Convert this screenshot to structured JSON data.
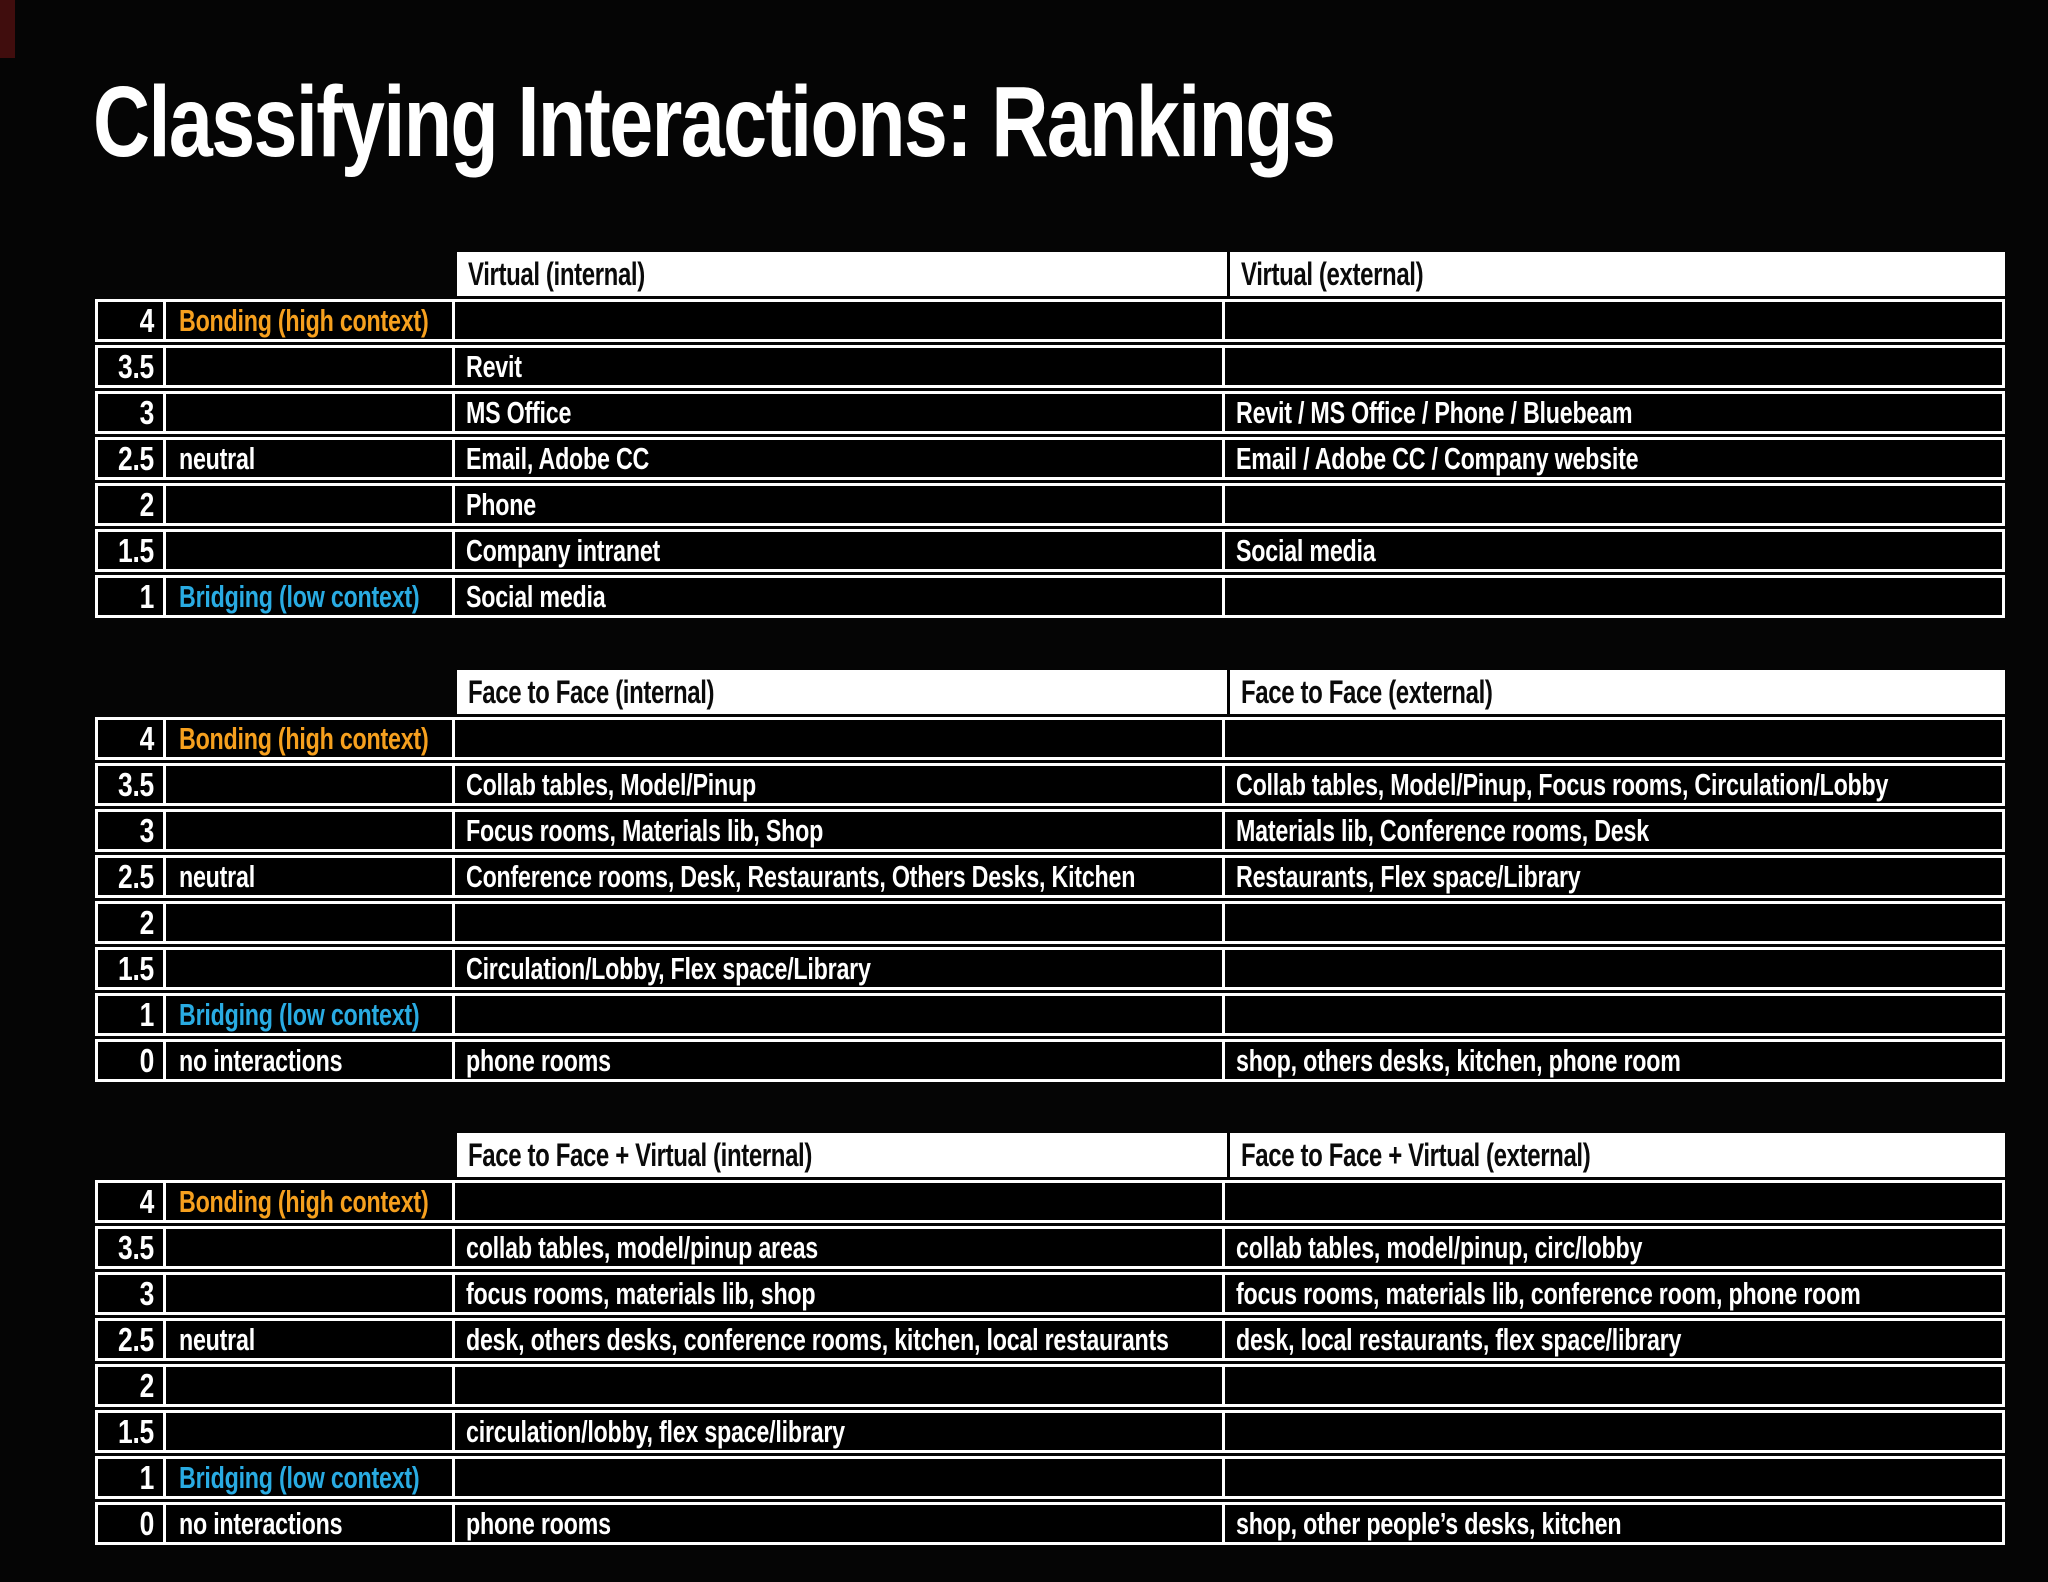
{
  "page": {
    "title": "Classifying Interactions: Rankings"
  },
  "colors": {
    "background": "#050505",
    "bonding_orange": "#F6A01E",
    "bridging_blue": "#29ABE2",
    "table_border": "#FFFFFF",
    "header_bg": "#FFFFFF",
    "header_text": "#0A0A0A",
    "corner_accent_red": "#400D0D"
  },
  "tables": [
    {
      "headers": [
        "Virtual (internal)",
        "Virtual (external)"
      ],
      "rows": [
        {
          "rank": "4",
          "label": "Bonding (high context)",
          "accent": "orange",
          "internal": "",
          "external": ""
        },
        {
          "rank": "3.5",
          "label": "",
          "accent": "white",
          "internal": "Revit",
          "external": ""
        },
        {
          "rank": "3",
          "label": "",
          "accent": "white",
          "internal": "MS Office",
          "external": "Revit / MS Office / Phone / Bluebeam"
        },
        {
          "rank": "2.5",
          "label": "neutral",
          "accent": "white",
          "internal": "Email, Adobe CC",
          "external": "Email / Adobe CC / Company website"
        },
        {
          "rank": "2",
          "label": "",
          "accent": "white",
          "internal": "Phone",
          "external": ""
        },
        {
          "rank": "1.5",
          "label": "",
          "accent": "white",
          "internal": "Company intranet",
          "external": "Social media"
        },
        {
          "rank": "1",
          "label": "Bridging (low context)",
          "accent": "blue",
          "internal": "Social media",
          "external": ""
        }
      ]
    },
    {
      "headers": [
        "Face to Face (internal)",
        "Face to Face (external)"
      ],
      "rows": [
        {
          "rank": "4",
          "label": "Bonding (high context)",
          "accent": "orange",
          "internal": "",
          "external": ""
        },
        {
          "rank": "3.5",
          "label": "",
          "accent": "white",
          "internal": "Collab tables, Model/Pinup",
          "external": "Collab tables, Model/Pinup, Focus rooms, Circulation/Lobby"
        },
        {
          "rank": "3",
          "label": "",
          "accent": "white",
          "internal": "Focus rooms, Materials lib, Shop",
          "external": "Materials lib, Conference rooms, Desk"
        },
        {
          "rank": "2.5",
          "label": "neutral",
          "accent": "white",
          "internal": "Conference rooms, Desk, Restaurants, Others Desks, Kitchen",
          "external": "Restaurants, Flex space/Library"
        },
        {
          "rank": "2",
          "label": "",
          "accent": "white",
          "internal": "",
          "external": ""
        },
        {
          "rank": "1.5",
          "label": "",
          "accent": "white",
          "internal": "Circulation/Lobby, Flex space/Library",
          "external": ""
        },
        {
          "rank": "1",
          "label": "Bridging (low context)",
          "accent": "blue",
          "internal": "",
          "external": ""
        },
        {
          "rank": "0",
          "label": "no interactions",
          "accent": "white",
          "internal": "phone rooms",
          "external": "shop, others desks, kitchen, phone room"
        }
      ]
    },
    {
      "headers": [
        "Face to Face + Virtual (internal)",
        "Face to Face + Virtual (external)"
      ],
      "rows": [
        {
          "rank": "4",
          "label": "Bonding (high context)",
          "accent": "orange",
          "internal": "",
          "external": ""
        },
        {
          "rank": "3.5",
          "label": "",
          "accent": "white",
          "internal": "collab tables, model/pinup areas",
          "external": "collab tables, model/pinup, circ/lobby"
        },
        {
          "rank": "3",
          "label": "",
          "accent": "white",
          "internal": "focus rooms, materials lib, shop",
          "external": "focus rooms, materials lib, conference room, phone room"
        },
        {
          "rank": "2.5",
          "label": "neutral",
          "accent": "white",
          "internal": "desk, others desks, conference rooms, kitchen, local restaurants",
          "external": "desk, local restaurants, flex space/library"
        },
        {
          "rank": "2",
          "label": "",
          "accent": "white",
          "internal": "",
          "external": ""
        },
        {
          "rank": "1.5",
          "label": "",
          "accent": "white",
          "internal": "circulation/lobby, flex space/library",
          "external": ""
        },
        {
          "rank": "1",
          "label": "Bridging (low context)",
          "accent": "blue",
          "internal": "",
          "external": ""
        },
        {
          "rank": "0",
          "label": "no interactions",
          "accent": "white",
          "internal": "phone rooms",
          "external": "shop, other people’s desks, kitchen"
        }
      ]
    }
  ]
}
